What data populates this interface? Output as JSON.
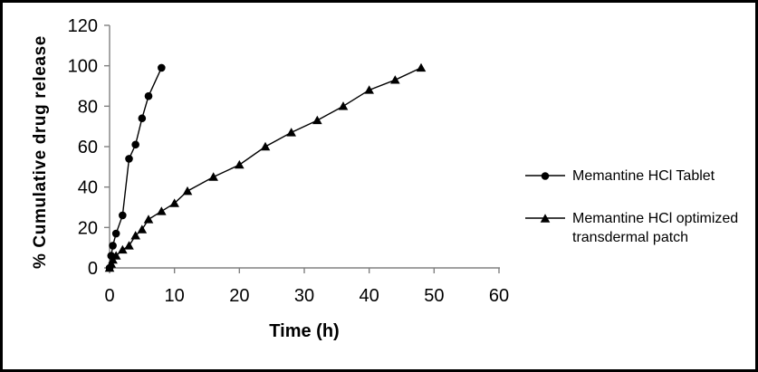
{
  "figure": {
    "background": "#ffffff",
    "border_color": "#000000"
  },
  "chart_data": {
    "type": "line",
    "title": "",
    "xlabel": "Time (h)",
    "ylabel": "% Cumulative drug release",
    "xlim": [
      0,
      60
    ],
    "ylim": [
      0,
      120
    ],
    "x_ticks": [
      0,
      10,
      20,
      30,
      40,
      50,
      60
    ],
    "y_ticks": [
      0,
      20,
      40,
      60,
      80,
      100,
      120
    ],
    "grid": false,
    "legend_position": "right",
    "axis_color": "#808080",
    "series_color": "#000000",
    "series": [
      {
        "name": "Memantine HCl Tablet",
        "marker": "circle",
        "x": [
          0,
          0.25,
          0.5,
          1,
          2,
          3,
          4,
          5,
          6,
          8
        ],
        "y": [
          0,
          6,
          11,
          17,
          26,
          54,
          61,
          74,
          85,
          99
        ]
      },
      {
        "name": "Memantine HCl optimized transdermal patch",
        "marker": "triangle",
        "x": [
          0,
          0.25,
          0.5,
          1,
          2,
          3,
          4,
          5,
          6,
          8,
          10,
          12,
          16,
          20,
          24,
          28,
          32,
          36,
          40,
          44,
          48
        ],
        "y": [
          0,
          2,
          4,
          6,
          9,
          11,
          16,
          19,
          24,
          28,
          32,
          38,
          45,
          51,
          60,
          67,
          73,
          80,
          88,
          93,
          99
        ]
      }
    ]
  }
}
